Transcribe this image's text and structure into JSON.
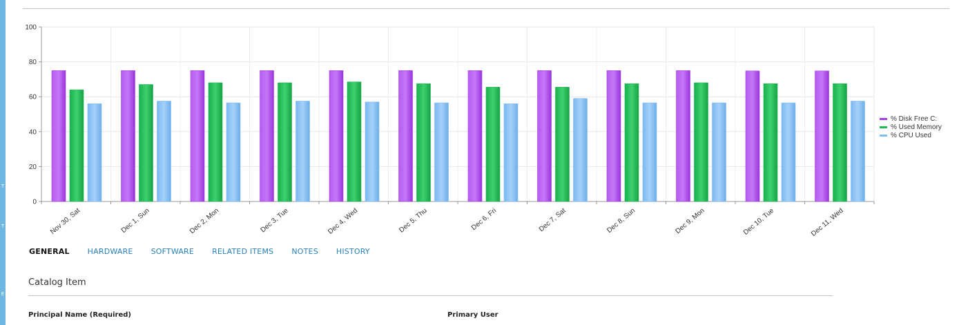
{
  "left_rail": {
    "marks": [
      "T",
      "T",
      "E"
    ]
  },
  "tabs": [
    {
      "label": "GENERAL",
      "active": true
    },
    {
      "label": "HARDWARE",
      "active": false
    },
    {
      "label": "SOFTWARE",
      "active": false
    },
    {
      "label": "RELATED ITEMS",
      "active": false
    },
    {
      "label": "NOTES",
      "active": false
    },
    {
      "label": "HISTORY",
      "active": false
    }
  ],
  "section": {
    "title": "Catalog Item"
  },
  "fields": {
    "principal_name_label": "Principal Name (Required)",
    "primary_user_label": "Primary User"
  },
  "chart_data": {
    "type": "bar",
    "title": "",
    "xlabel": "",
    "ylabel": "",
    "ylim": [
      0,
      100
    ],
    "yticks": [
      0,
      20,
      40,
      60,
      80,
      100
    ],
    "grid": true,
    "legend_position": "right",
    "categories": [
      "Nov 30, Sat",
      "Dec 1, Sun",
      "Dec 2, Mon",
      "Dec 3, Tue",
      "Dec 4, Wed",
      "Dec 5, Thu",
      "Dec 6, Fri",
      "Dec 7, Sat",
      "Dec 8, Sun",
      "Dec 9, Mon",
      "Dec 10, Tue",
      "Dec 11, Wed"
    ],
    "series": [
      {
        "name": "% Disk Free C:",
        "color": "#a63ee6",
        "values": [
          75,
          75,
          75,
          75,
          75,
          75,
          75,
          75,
          75,
          75,
          74.8,
          74.8
        ]
      },
      {
        "name": "% Used Memory",
        "color": "#1db954",
        "values": [
          64,
          67,
          68,
          68,
          68.5,
          67.5,
          65.5,
          65.5,
          67.5,
          68,
          67.5,
          67.5
        ]
      },
      {
        "name": "% CPU Used",
        "color": "#7fbcf3",
        "values": [
          56,
          57.5,
          56.5,
          57.5,
          57,
          56.5,
          56,
          59,
          56.5,
          56.5,
          56.5,
          57.5
        ]
      }
    ]
  }
}
